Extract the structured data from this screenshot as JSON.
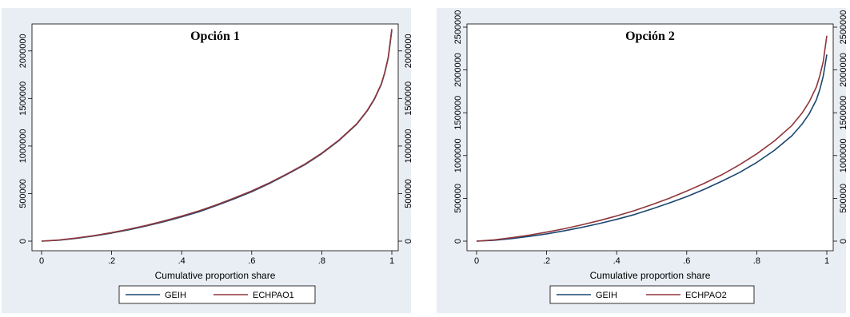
{
  "header_fragment": "",
  "chart_data": [
    {
      "type": "line",
      "title": "Opción 1",
      "xlabel": "Cumulative proportion share",
      "ylabel": "",
      "xlim": [
        0,
        1
      ],
      "ylim": [
        0,
        2250000
      ],
      "x_ticks": [
        0,
        0.2,
        0.4,
        0.6,
        0.8,
        1
      ],
      "x_tick_labels": [
        "0",
        ".2",
        ".4",
        ".6",
        ".8",
        "1"
      ],
      "y_ticks": [
        0,
        500000,
        1000000,
        1500000,
        2000000
      ],
      "y_tick_labels": [
        "0",
        "500000",
        "1000000",
        "1500000",
        "2000000"
      ],
      "y_axis_mirrored_right": true,
      "grid": false,
      "legend_position": "bottom",
      "series": [
        {
          "name": "GEIH",
          "color": "#1a476f",
          "x": [
            0,
            0.05,
            0.1,
            0.15,
            0.2,
            0.25,
            0.3,
            0.35,
            0.4,
            0.45,
            0.5,
            0.55,
            0.6,
            0.65,
            0.7,
            0.75,
            0.8,
            0.85,
            0.9,
            0.93,
            0.95,
            0.97,
            0.98,
            0.99,
            1
          ],
          "y": [
            0,
            10000,
            30000,
            55000,
            85000,
            120000,
            160000,
            205000,
            255000,
            310000,
            375000,
            445000,
            520000,
            605000,
            700000,
            800000,
            920000,
            1060000,
            1230000,
            1370000,
            1490000,
            1650000,
            1770000,
            1930000,
            2220000
          ]
        },
        {
          "name": "ECHPAO1",
          "color": "#90353b",
          "x": [
            0,
            0.05,
            0.1,
            0.15,
            0.2,
            0.25,
            0.3,
            0.35,
            0.4,
            0.45,
            0.5,
            0.55,
            0.6,
            0.65,
            0.7,
            0.75,
            0.8,
            0.85,
            0.9,
            0.93,
            0.95,
            0.97,
            0.98,
            0.99,
            1
          ],
          "y": [
            0,
            12000,
            33000,
            59000,
            90000,
            126000,
            166000,
            212000,
            263000,
            319000,
            383000,
            453000,
            528000,
            612000,
            706000,
            806000,
            925000,
            1065000,
            1234000,
            1375000,
            1495000,
            1655000,
            1775000,
            1935000,
            2230000
          ]
        }
      ]
    },
    {
      "type": "line",
      "title": "Opción 2",
      "xlabel": "Cumulative proportion share",
      "ylabel": "",
      "xlim": [
        0,
        1
      ],
      "ylim": [
        0,
        2500000
      ],
      "x_ticks": [
        0,
        0.2,
        0.4,
        0.6,
        0.8,
        1
      ],
      "x_tick_labels": [
        "0",
        ".2",
        ".4",
        ".6",
        ".8",
        "1"
      ],
      "y_ticks": [
        0,
        500000,
        1000000,
        1500000,
        2000000,
        2500000
      ],
      "y_tick_labels": [
        "0",
        "500000",
        "1000000",
        "1500000",
        "2000000",
        "2500000"
      ],
      "y_axis_mirrored_right": true,
      "grid": false,
      "legend_position": "bottom",
      "series": [
        {
          "name": "GEIH",
          "color": "#1a476f",
          "x": [
            0,
            0.05,
            0.1,
            0.15,
            0.2,
            0.25,
            0.3,
            0.35,
            0.4,
            0.45,
            0.5,
            0.55,
            0.6,
            0.65,
            0.7,
            0.75,
            0.8,
            0.85,
            0.9,
            0.93,
            0.95,
            0.97,
            0.98,
            0.99,
            1
          ],
          "y": [
            0,
            10000,
            30000,
            55000,
            85000,
            120000,
            160000,
            205000,
            255000,
            310000,
            375000,
            445000,
            520000,
            605000,
            700000,
            800000,
            920000,
            1060000,
            1230000,
            1370000,
            1490000,
            1650000,
            1770000,
            1930000,
            2180000
          ]
        },
        {
          "name": "ECHPAO2",
          "color": "#90353b",
          "x": [
            0,
            0.05,
            0.1,
            0.15,
            0.2,
            0.25,
            0.3,
            0.35,
            0.4,
            0.45,
            0.5,
            0.55,
            0.6,
            0.65,
            0.7,
            0.75,
            0.8,
            0.85,
            0.9,
            0.93,
            0.95,
            0.97,
            0.98,
            0.99,
            1
          ],
          "y": [
            0,
            15000,
            40000,
            70000,
            105000,
            145000,
            190000,
            240000,
            295000,
            355000,
            425000,
            500000,
            585000,
            675000,
            775000,
            890000,
            1020000,
            1170000,
            1350000,
            1500000,
            1630000,
            1800000,
            1930000,
            2100000,
            2400000
          ]
        }
      ]
    }
  ]
}
